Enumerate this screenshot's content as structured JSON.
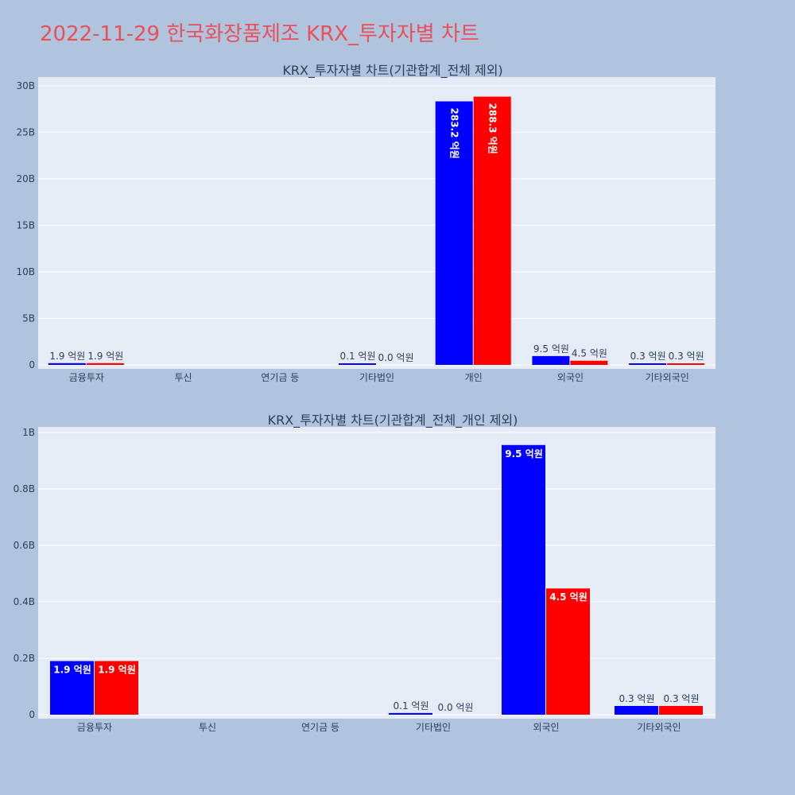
{
  "title": "2022-11-29 한국화장품제조 KRX_투자자별 차트",
  "colors": {
    "buy": "#0000ff",
    "sell": "#ff0000",
    "title": "#e8505b",
    "background": "#b0c4de",
    "plot_background": "#e5ecf6"
  },
  "chart_data": [
    {
      "type": "bar",
      "title": "KRX_투자자별 차트(기관합계_전체 제외)",
      "categories": [
        "금융투자",
        "투신",
        "연기금 등",
        "기타법인",
        "개인",
        "외국인",
        "기타외국인"
      ],
      "series": [
        {
          "values": [
            0.19,
            0,
            0,
            0.01,
            28.32,
            0.95,
            0.03
          ],
          "labels": [
            "1.9 억원",
            "",
            "",
            "0.1 억원",
            "283.2 억원",
            "9.5 억원",
            "0.3 억원"
          ]
        },
        {
          "values": [
            0.19,
            0,
            0,
            0.0,
            28.83,
            0.45,
            0.03
          ],
          "labels": [
            "1.9 억원",
            "",
            "",
            "0.0 억원",
            "288.3 억원",
            "4.5 억원",
            "0.3 억원"
          ]
        }
      ],
      "yticks": [
        0,
        5,
        10,
        15,
        20,
        25,
        30
      ],
      "ytick_labels": [
        "0",
        "5B",
        "10B",
        "15B",
        "20B",
        "25B",
        "30B"
      ],
      "ylim": [
        0,
        30.5
      ],
      "grid": true
    },
    {
      "type": "bar",
      "title": "KRX_투자자별 차트(기관합계_전체_개인 제외)",
      "categories": [
        "금융투자",
        "투신",
        "연기금 등",
        "기타법인",
        "외국인",
        "기타외국인"
      ],
      "series": [
        {
          "values": [
            0.19,
            0,
            0,
            0.006,
            0.955,
            0.031
          ],
          "labels": [
            "1.9 억원",
            "",
            "",
            "0.1 억원",
            "9.5 억원",
            "0.3 억원"
          ]
        },
        {
          "values": [
            0.19,
            0,
            0,
            0.0,
            0.447,
            0.031
          ],
          "labels": [
            "1.9 억원",
            "",
            "",
            "0.0 억원",
            "4.5 억원",
            "0.3 억원"
          ]
        }
      ],
      "yticks": [
        0,
        0.2,
        0.4,
        0.6,
        0.8,
        1.0
      ],
      "ytick_labels": [
        "0",
        "0.2B",
        "0.4B",
        "0.6B",
        "0.8B",
        "1B"
      ],
      "ylim": [
        0,
        1.005
      ],
      "grid": true
    }
  ]
}
